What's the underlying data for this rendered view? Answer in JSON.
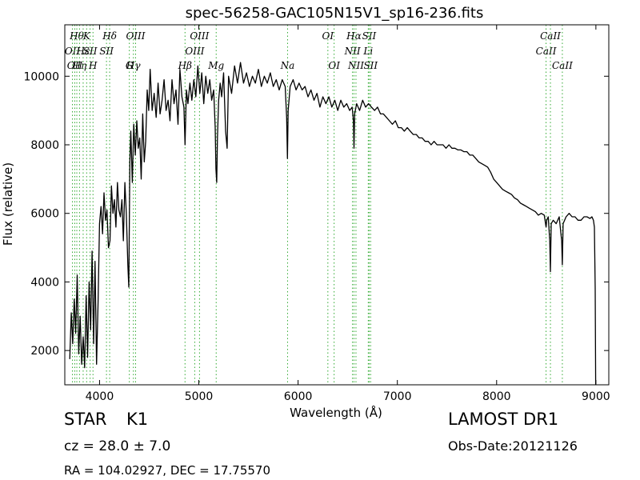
{
  "chart_data": {
    "type": "line",
    "title": "spec-56258-GAC105N15V1_sp16-236.fits",
    "xlabel": "Wavelength (Å)",
    "ylabel": "Flux (relative)",
    "xlim": [
      3650,
      9130
    ],
    "ylim": [
      1000,
      11500
    ],
    "xticks": [
      4000,
      5000,
      6000,
      7000,
      8000,
      9000
    ],
    "yticks": [
      2000,
      4000,
      6000,
      8000,
      10000
    ],
    "grid": false,
    "line_color": "#000000",
    "marker_color": "#33aa33",
    "spectrum": [
      [
        3700,
        1750
      ],
      [
        3715,
        3100
      ],
      [
        3730,
        2200
      ],
      [
        3745,
        3500
      ],
      [
        3760,
        2500
      ],
      [
        3775,
        4200
      ],
      [
        3790,
        1900
      ],
      [
        3805,
        3000
      ],
      [
        3820,
        1600
      ],
      [
        3835,
        2400
      ],
      [
        3850,
        1500
      ],
      [
        3865,
        3600
      ],
      [
        3880,
        1800
      ],
      [
        3895,
        4000
      ],
      [
        3910,
        2600
      ],
      [
        3925,
        4900
      ],
      [
        3940,
        2200
      ],
      [
        3955,
        4600
      ],
      [
        3970,
        1600
      ],
      [
        3985,
        3400
      ],
      [
        4000,
        5700
      ],
      [
        4015,
        6200
      ],
      [
        4030,
        5400
      ],
      [
        4045,
        6600
      ],
      [
        4060,
        5800
      ],
      [
        4075,
        6100
      ],
      [
        4090,
        5000
      ],
      [
        4105,
        5200
      ],
      [
        4120,
        6800
      ],
      [
        4135,
        6000
      ],
      [
        4150,
        6400
      ],
      [
        4165,
        5600
      ],
      [
        4180,
        6900
      ],
      [
        4195,
        6100
      ],
      [
        4210,
        5900
      ],
      [
        4225,
        6400
      ],
      [
        4240,
        5200
      ],
      [
        4255,
        6900
      ],
      [
        4270,
        6000
      ],
      [
        4285,
        4500
      ],
      [
        4295,
        3850
      ],
      [
        4305,
        7500
      ],
      [
        4315,
        8400
      ],
      [
        4330,
        6900
      ],
      [
        4345,
        8600
      ],
      [
        4360,
        7700
      ],
      [
        4375,
        8700
      ],
      [
        4390,
        7900
      ],
      [
        4405,
        8200
      ],
      [
        4420,
        7000
      ],
      [
        4435,
        8900
      ],
      [
        4450,
        7500
      ],
      [
        4465,
        8100
      ],
      [
        4480,
        9600
      ],
      [
        4495,
        9000
      ],
      [
        4510,
        10200
      ],
      [
        4530,
        9000
      ],
      [
        4550,
        9500
      ],
      [
        4570,
        8800
      ],
      [
        4590,
        9800
      ],
      [
        4610,
        8900
      ],
      [
        4630,
        9300
      ],
      [
        4650,
        9900
      ],
      [
        4670,
        9000
      ],
      [
        4690,
        9300
      ],
      [
        4710,
        8700
      ],
      [
        4730,
        9900
      ],
      [
        4750,
        9200
      ],
      [
        4770,
        9600
      ],
      [
        4790,
        8600
      ],
      [
        4810,
        10200
      ],
      [
        4830,
        9400
      ],
      [
        4850,
        9100
      ],
      [
        4861,
        8000
      ],
      [
        4875,
        9600
      ],
      [
        4890,
        9200
      ],
      [
        4910,
        9800
      ],
      [
        4930,
        9300
      ],
      [
        4950,
        9900
      ],
      [
        4970,
        9400
      ],
      [
        4990,
        10300
      ],
      [
        5010,
        9500
      ],
      [
        5030,
        10100
      ],
      [
        5050,
        9200
      ],
      [
        5070,
        10000
      ],
      [
        5090,
        9500
      ],
      [
        5110,
        9900
      ],
      [
        5130,
        9300
      ],
      [
        5150,
        9600
      ],
      [
        5165,
        8500
      ],
      [
        5172,
        7300
      ],
      [
        5180,
        6900
      ],
      [
        5188,
        8200
      ],
      [
        5200,
        9300
      ],
      [
        5215,
        9800
      ],
      [
        5230,
        9400
      ],
      [
        5250,
        10100
      ],
      [
        5270,
        8400
      ],
      [
        5285,
        7900
      ],
      [
        5300,
        10000
      ],
      [
        5330,
        9500
      ],
      [
        5360,
        10300
      ],
      [
        5390,
        9800
      ],
      [
        5420,
        10400
      ],
      [
        5450,
        9800
      ],
      [
        5480,
        10100
      ],
      [
        5510,
        9700
      ],
      [
        5540,
        10000
      ],
      [
        5570,
        9800
      ],
      [
        5600,
        10200
      ],
      [
        5630,
        9700
      ],
      [
        5660,
        10000
      ],
      [
        5690,
        9800
      ],
      [
        5720,
        10100
      ],
      [
        5750,
        9700
      ],
      [
        5780,
        9900
      ],
      [
        5810,
        9600
      ],
      [
        5840,
        9900
      ],
      [
        5870,
        9700
      ],
      [
        5885,
        8800
      ],
      [
        5893,
        7600
      ],
      [
        5900,
        9000
      ],
      [
        5920,
        9700
      ],
      [
        5950,
        9900
      ],
      [
        5980,
        9600
      ],
      [
        6010,
        9800
      ],
      [
        6040,
        9600
      ],
      [
        6070,
        9700
      ],
      [
        6100,
        9400
      ],
      [
        6130,
        9600
      ],
      [
        6160,
        9300
      ],
      [
        6190,
        9500
      ],
      [
        6220,
        9100
      ],
      [
        6250,
        9400
      ],
      [
        6280,
        9200
      ],
      [
        6310,
        9400
      ],
      [
        6340,
        9100
      ],
      [
        6370,
        9300
      ],
      [
        6400,
        9000
      ],
      [
        6430,
        9300
      ],
      [
        6460,
        9100
      ],
      [
        6490,
        9200
      ],
      [
        6520,
        9000
      ],
      [
        6545,
        9100
      ],
      [
        6558,
        8700
      ],
      [
        6563,
        7900
      ],
      [
        6570,
        8900
      ],
      [
        6590,
        9200
      ],
      [
        6620,
        9000
      ],
      [
        6650,
        9300
      ],
      [
        6680,
        9100
      ],
      [
        6710,
        9200
      ],
      [
        6740,
        9100
      ],
      [
        6770,
        9000
      ],
      [
        6800,
        9100
      ],
      [
        6830,
        8900
      ],
      [
        6860,
        8900
      ],
      [
        6890,
        8800
      ],
      [
        6920,
        8700
      ],
      [
        6950,
        8600
      ],
      [
        6980,
        8700
      ],
      [
        7010,
        8500
      ],
      [
        7040,
        8500
      ],
      [
        7070,
        8400
      ],
      [
        7100,
        8500
      ],
      [
        7130,
        8400
      ],
      [
        7160,
        8300
      ],
      [
        7190,
        8300
      ],
      [
        7220,
        8200
      ],
      [
        7250,
        8200
      ],
      [
        7280,
        8100
      ],
      [
        7310,
        8100
      ],
      [
        7340,
        8000
      ],
      [
        7370,
        8100
      ],
      [
        7400,
        8000
      ],
      [
        7430,
        8000
      ],
      [
        7460,
        8000
      ],
      [
        7490,
        7900
      ],
      [
        7520,
        8000
      ],
      [
        7550,
        7900
      ],
      [
        7580,
        7900
      ],
      [
        7610,
        7850
      ],
      [
        7640,
        7850
      ],
      [
        7670,
        7800
      ],
      [
        7700,
        7800
      ],
      [
        7730,
        7700
      ],
      [
        7760,
        7700
      ],
      [
        7790,
        7600
      ],
      [
        7820,
        7500
      ],
      [
        7850,
        7450
      ],
      [
        7880,
        7400
      ],
      [
        7910,
        7350
      ],
      [
        7940,
        7200
      ],
      [
        7970,
        7000
      ],
      [
        8000,
        6900
      ],
      [
        8030,
        6800
      ],
      [
        8060,
        6700
      ],
      [
        8090,
        6650
      ],
      [
        8120,
        6600
      ],
      [
        8150,
        6550
      ],
      [
        8180,
        6450
      ],
      [
        8210,
        6400
      ],
      [
        8240,
        6300
      ],
      [
        8270,
        6250
      ],
      [
        8300,
        6200
      ],
      [
        8330,
        6150
      ],
      [
        8360,
        6100
      ],
      [
        8390,
        6050
      ],
      [
        8420,
        5950
      ],
      [
        8450,
        6000
      ],
      [
        8480,
        5950
      ],
      [
        8498,
        5600
      ],
      [
        8505,
        5800
      ],
      [
        8520,
        5900
      ],
      [
        8535,
        5200
      ],
      [
        8542,
        4300
      ],
      [
        8550,
        5700
      ],
      [
        8570,
        5800
      ],
      [
        8600,
        5700
      ],
      [
        8630,
        5900
      ],
      [
        8655,
        5200
      ],
      [
        8662,
        4500
      ],
      [
        8670,
        5700
      ],
      [
        8700,
        5900
      ],
      [
        8730,
        6000
      ],
      [
        8760,
        5900
      ],
      [
        8790,
        5900
      ],
      [
        8820,
        5800
      ],
      [
        8850,
        5800
      ],
      [
        8880,
        5900
      ],
      [
        8910,
        5900
      ],
      [
        8940,
        5850
      ],
      [
        8960,
        5900
      ],
      [
        8975,
        5800
      ],
      [
        8985,
        5600
      ],
      [
        8993,
        3800
      ],
      [
        8998,
        1000
      ]
    ],
    "lines": [
      {
        "wl": 3727,
        "label": "OII",
        "row": 1
      },
      {
        "wl": 3750,
        "label": "OII",
        "row": 2
      },
      {
        "wl": 3771,
        "label": "Hθ",
        "row": 0
      },
      {
        "wl": 3798,
        "label": "Hη",
        "row": 2
      },
      {
        "wl": 3835,
        "label": "Hε",
        "row": 1
      },
      {
        "wl": 3870,
        "label": "K",
        "row": 0
      },
      {
        "wl": 3905,
        "label": "SII",
        "row": 1
      },
      {
        "wl": 3934,
        "label": "H",
        "row": 3
      },
      {
        "wl": 4070,
        "label": "SII",
        "row": 1
      },
      {
        "wl": 4102,
        "label": "Hδ",
        "row": 0
      },
      {
        "wl": 4300,
        "label": "G",
        "row": 3
      },
      {
        "wl": 4341,
        "label": "Hγ",
        "row": 2
      },
      {
        "wl": 4363,
        "label": "OIII",
        "row": 0
      },
      {
        "wl": 4861,
        "label": "Hβ",
        "row": 3
      },
      {
        "wl": 4959,
        "label": "OIII",
        "row": 1
      },
      {
        "wl": 5007,
        "label": "OIII",
        "row": 0
      },
      {
        "wl": 5175,
        "label": "Mg",
        "row": 3
      },
      {
        "wl": 5894,
        "label": "Na",
        "row": 2
      },
      {
        "wl": 6300,
        "label": "OI",
        "row": 0
      },
      {
        "wl": 6363,
        "label": "OI",
        "row": 3
      },
      {
        "wl": 6548,
        "label": "NII",
        "row": 1
      },
      {
        "wl": 6563,
        "label": "Hα",
        "row": 0
      },
      {
        "wl": 6583,
        "label": "NII",
        "row": 3
      },
      {
        "wl": 6707,
        "label": "Li",
        "row": 1
      },
      {
        "wl": 6716,
        "label": "SII",
        "row": 0
      },
      {
        "wl": 6731,
        "label": "SII",
        "row": 3
      },
      {
        "wl": 8498,
        "label": "CaII",
        "row": 1
      },
      {
        "wl": 8542,
        "label": "CaII",
        "row": 0
      },
      {
        "wl": 8662,
        "label": "CaII",
        "row": 3
      }
    ]
  },
  "info": {
    "object_type": "STAR",
    "object_class": "K1",
    "survey": "LAMOST DR1",
    "redshift": "cz = 28.0 ± 7.0",
    "obs_date": "Obs-Date:20121126",
    "coords": "RA = 104.02927, DEC = 17.75570"
  }
}
